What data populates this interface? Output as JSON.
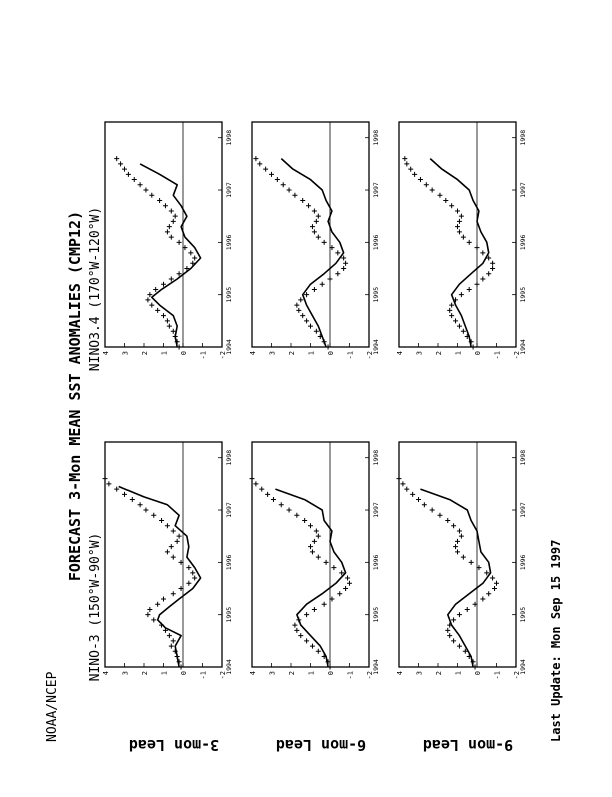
{
  "header": {
    "org": "NOAA/NCEP",
    "main_title": "FORECAST 3-Mon MEAN SST ANOMALIES (CMP12)",
    "footer": "Last Update: Mon Sep 15 1997"
  },
  "row_labels": [
    "3-mon Lead",
    "6-mon Lead",
    "9-mon Lead"
  ],
  "col_titles": [
    "NINO-3 (150°W-90°W)",
    "NINO3.4 (170°W-120°W)"
  ],
  "x_tick_labels": [
    "1994",
    "1995",
    "1996",
    "1997",
    "1998"
  ],
  "y_tick_labels": [
    "-2",
    "-1",
    "0",
    "1",
    "2",
    "3",
    "4"
  ],
  "chart_data": [
    {
      "type": "line",
      "region": "NINO-3",
      "lead": "3-mon Lead",
      "xlim": [
        1994.0,
        1998.3
      ],
      "ylim": [
        -2,
        4
      ],
      "series": [
        {
          "style": "line",
          "x": [
            1994.0,
            1994.2,
            1994.4,
            1994.6,
            1994.75,
            1994.9,
            1995.0,
            1995.15,
            1995.3,
            1995.5,
            1995.7,
            1995.9,
            1996.1,
            1996.3,
            1996.5,
            1996.7,
            1996.9,
            1997.1,
            1997.25,
            1997.45
          ],
          "y": [
            0.2,
            0.3,
            0.4,
            0.1,
            0.9,
            1.3,
            1.2,
            0.7,
            0.2,
            -0.5,
            -0.9,
            -0.6,
            -0.2,
            -0.3,
            -0.2,
            0.4,
            0.2,
            0.8,
            2.0,
            3.3
          ]
        },
        {
          "style": "cross",
          "x": [
            1994.0,
            1994.1,
            1994.2,
            1994.3,
            1994.4,
            1994.5,
            1994.6,
            1994.7,
            1994.8,
            1994.9,
            1995.0,
            1995.1,
            1995.2,
            1995.3,
            1995.4,
            1995.5,
            1995.6,
            1995.7,
            1995.8,
            1995.9,
            1996.0,
            1996.1,
            1996.2,
            1996.3,
            1996.4,
            1996.5,
            1996.6,
            1996.7,
            1996.8,
            1996.9,
            1997.0,
            1997.1,
            1997.2,
            1997.3,
            1997.4,
            1997.5,
            1997.6
          ],
          "y": [
            0.1,
            0.2,
            0.3,
            0.4,
            0.6,
            0.5,
            0.7,
            0.9,
            1.1,
            1.5,
            1.8,
            1.7,
            1.3,
            1.0,
            0.5,
            0.1,
            -0.3,
            -0.6,
            -0.5,
            -0.3,
            0.1,
            0.5,
            0.8,
            0.6,
            0.3,
            0.2,
            0.5,
            0.8,
            1.1,
            1.5,
            1.9,
            2.2,
            2.6,
            3.0,
            3.4,
            3.8,
            4.0
          ]
        }
      ]
    },
    {
      "type": "line",
      "region": "NINO3.4",
      "lead": "3-mon Lead",
      "xlim": [
        1994.0,
        1998.3
      ],
      "ylim": [
        -2,
        4
      ],
      "series": [
        {
          "style": "line",
          "x": [
            1994.0,
            1994.2,
            1994.4,
            1994.6,
            1994.8,
            1994.95,
            1995.1,
            1995.3,
            1995.5,
            1995.7,
            1995.9,
            1996.1,
            1996.3,
            1996.5,
            1996.7,
            1996.9,
            1997.1,
            1997.3,
            1997.5
          ],
          "y": [
            0.3,
            0.4,
            0.3,
            0.5,
            1.2,
            1.6,
            1.1,
            0.3,
            -0.4,
            -0.9,
            -0.6,
            -0.1,
            0.1,
            -0.2,
            0.1,
            0.5,
            0.3,
            1.2,
            2.2
          ]
        },
        {
          "style": "cross",
          "x": [
            1994.0,
            1994.1,
            1994.2,
            1994.3,
            1994.4,
            1994.5,
            1994.6,
            1994.7,
            1994.8,
            1994.9,
            1995.0,
            1995.1,
            1995.2,
            1995.3,
            1995.4,
            1995.5,
            1995.6,
            1995.7,
            1995.8,
            1995.9,
            1996.0,
            1996.1,
            1996.2,
            1996.3,
            1996.4,
            1996.5,
            1996.6,
            1996.7,
            1996.8,
            1996.9,
            1997.0,
            1997.1,
            1997.2,
            1997.3,
            1997.4,
            1997.5,
            1997.6
          ],
          "y": [
            0.2,
            0.3,
            0.4,
            0.5,
            0.7,
            0.8,
            1.0,
            1.3,
            1.6,
            1.8,
            1.7,
            1.4,
            1.0,
            0.6,
            0.2,
            -0.2,
            -0.5,
            -0.6,
            -0.4,
            -0.1,
            0.2,
            0.6,
            0.8,
            0.7,
            0.5,
            0.4,
            0.6,
            0.9,
            1.2,
            1.6,
            1.9,
            2.2,
            2.5,
            2.8,
            3.0,
            3.2,
            3.4
          ]
        }
      ]
    },
    {
      "type": "line",
      "region": "NINO-3",
      "lead": "6-mon Lead",
      "xlim": [
        1994.0,
        1998.3
      ],
      "ylim": [
        -2,
        4
      ],
      "series": [
        {
          "style": "line",
          "x": [
            1994.0,
            1994.2,
            1994.4,
            1994.6,
            1994.8,
            1995.0,
            1995.2,
            1995.4,
            1995.6,
            1995.8,
            1996.0,
            1996.2,
            1996.4,
            1996.6,
            1996.8,
            1997.0,
            1997.2,
            1997.4
          ],
          "y": [
            0.1,
            0.2,
            0.5,
            1.0,
            1.5,
            1.7,
            1.2,
            0.4,
            -0.3,
            -0.8,
            -0.6,
            -0.2,
            0.0,
            -0.1,
            0.3,
            0.4,
            1.3,
            2.8
          ]
        },
        {
          "style": "cross",
          "x": [
            1994.0,
            1994.1,
            1994.2,
            1994.3,
            1994.4,
            1994.5,
            1994.6,
            1994.7,
            1994.8,
            1994.9,
            1995.0,
            1995.1,
            1995.2,
            1995.3,
            1995.4,
            1995.5,
            1995.6,
            1995.7,
            1995.8,
            1995.9,
            1996.0,
            1996.1,
            1996.2,
            1996.3,
            1996.4,
            1996.5,
            1996.6,
            1996.7,
            1996.8,
            1996.9,
            1997.0,
            1997.1,
            1997.2,
            1997.3,
            1997.4,
            1997.5,
            1997.6
          ],
          "y": [
            0.0,
            0.1,
            0.3,
            0.6,
            0.9,
            1.2,
            1.5,
            1.7,
            1.8,
            1.6,
            1.2,
            0.8,
            0.3,
            -0.1,
            -0.5,
            -0.8,
            -1.0,
            -0.9,
            -0.6,
            -0.2,
            0.2,
            0.6,
            0.9,
            1.0,
            0.8,
            0.6,
            0.7,
            1.0,
            1.3,
            1.7,
            2.1,
            2.5,
            2.9,
            3.2,
            3.5,
            3.8,
            4.0
          ]
        }
      ]
    },
    {
      "type": "line",
      "region": "NINO3.4",
      "lead": "6-mon Lead",
      "xlim": [
        1994.0,
        1998.3
      ],
      "ylim": [
        -2,
        4
      ],
      "series": [
        {
          "style": "line",
          "x": [
            1994.0,
            1994.2,
            1994.4,
            1994.6,
            1994.8,
            1995.0,
            1995.2,
            1995.4,
            1995.6,
            1995.8,
            1996.0,
            1996.2,
            1996.4,
            1996.6,
            1996.8,
            1997.0,
            1997.2,
            1997.4,
            1997.6
          ],
          "y": [
            0.2,
            0.4,
            0.6,
            0.9,
            1.2,
            1.4,
            1.0,
            0.3,
            -0.3,
            -0.7,
            -0.5,
            -0.1,
            0.1,
            -0.1,
            0.2,
            0.4,
            1.0,
            1.9,
            2.5
          ]
        },
        {
          "style": "cross",
          "x": [
            1994.0,
            1994.1,
            1994.2,
            1994.3,
            1994.4,
            1994.5,
            1994.6,
            1994.7,
            1994.8,
            1994.9,
            1995.0,
            1995.1,
            1995.2,
            1995.3,
            1995.4,
            1995.5,
            1995.6,
            1995.7,
            1995.8,
            1995.9,
            1996.0,
            1996.1,
            1996.2,
            1996.3,
            1996.4,
            1996.5,
            1996.6,
            1996.7,
            1996.8,
            1996.9,
            1997.0,
            1997.1,
            1997.2,
            1997.3,
            1997.4,
            1997.5,
            1997.6
          ],
          "y": [
            0.1,
            0.3,
            0.5,
            0.7,
            1.0,
            1.2,
            1.4,
            1.6,
            1.7,
            1.5,
            1.2,
            0.8,
            0.4,
            0.0,
            -0.4,
            -0.7,
            -0.8,
            -0.7,
            -0.4,
            -0.1,
            0.3,
            0.6,
            0.8,
            0.9,
            0.7,
            0.6,
            0.8,
            1.1,
            1.4,
            1.8,
            2.1,
            2.4,
            2.7,
            3.0,
            3.3,
            3.6,
            3.8
          ]
        }
      ]
    },
    {
      "type": "line",
      "region": "NINO-3",
      "lead": "9-mon Lead",
      "xlim": [
        1994.0,
        1998.3
      ],
      "ylim": [
        -2,
        4
      ],
      "series": [
        {
          "style": "line",
          "x": [
            1994.0,
            1994.2,
            1994.4,
            1994.6,
            1994.8,
            1995.0,
            1995.2,
            1995.4,
            1995.6,
            1995.8,
            1996.0,
            1996.2,
            1996.4,
            1996.6,
            1996.8,
            1997.0,
            1997.2,
            1997.4
          ],
          "y": [
            0.2,
            0.3,
            0.6,
            0.9,
            1.3,
            1.5,
            1.1,
            0.4,
            -0.3,
            -0.7,
            -0.6,
            -0.2,
            -0.1,
            0.0,
            0.3,
            0.5,
            1.4,
            2.9
          ]
        },
        {
          "style": "cross",
          "x": [
            1994.0,
            1994.1,
            1994.2,
            1994.3,
            1994.4,
            1994.5,
            1994.6,
            1994.7,
            1994.8,
            1994.9,
            1995.0,
            1995.1,
            1995.2,
            1995.3,
            1995.4,
            1995.5,
            1995.6,
            1995.7,
            1995.8,
            1995.9,
            1996.0,
            1996.1,
            1996.2,
            1996.3,
            1996.4,
            1996.5,
            1996.6,
            1996.7,
            1996.8,
            1996.9,
            1997.0,
            1997.1,
            1997.2,
            1997.3,
            1997.4,
            1997.5,
            1997.6
          ],
          "y": [
            0.1,
            0.2,
            0.4,
            0.6,
            0.9,
            1.2,
            1.4,
            1.5,
            1.4,
            1.2,
            0.9,
            0.5,
            0.1,
            -0.3,
            -0.6,
            -0.9,
            -1.0,
            -0.8,
            -0.5,
            -0.1,
            0.3,
            0.7,
            1.0,
            1.1,
            1.0,
            0.8,
            0.9,
            1.2,
            1.5,
            1.9,
            2.3,
            2.7,
            3.0,
            3.3,
            3.6,
            3.8,
            4.0
          ]
        }
      ]
    },
    {
      "type": "line",
      "region": "NINO3.4",
      "lead": "9-mon Lead",
      "xlim": [
        1994.0,
        1998.3
      ],
      "ylim": [
        -2,
        4
      ],
      "series": [
        {
          "style": "line",
          "x": [
            1994.0,
            1994.2,
            1994.4,
            1994.6,
            1994.8,
            1995.0,
            1995.2,
            1995.4,
            1995.6,
            1995.8,
            1996.0,
            1996.2,
            1996.4,
            1996.6,
            1996.8,
            1997.0,
            1997.2,
            1997.4,
            1997.6
          ],
          "y": [
            0.3,
            0.4,
            0.6,
            0.8,
            1.1,
            1.3,
            0.9,
            0.3,
            -0.3,
            -0.6,
            -0.5,
            -0.2,
            0.0,
            -0.1,
            0.2,
            0.4,
            1.0,
            1.8,
            2.4
          ]
        },
        {
          "style": "cross",
          "x": [
            1994.0,
            1994.1,
            1994.2,
            1994.3,
            1994.4,
            1994.5,
            1994.6,
            1994.7,
            1994.8,
            1994.9,
            1995.0,
            1995.1,
            1995.2,
            1995.3,
            1995.4,
            1995.5,
            1995.6,
            1995.7,
            1995.8,
            1995.9,
            1996.0,
            1996.1,
            1996.2,
            1996.3,
            1996.4,
            1996.5,
            1996.6,
            1996.7,
            1996.8,
            1996.9,
            1997.0,
            1997.1,
            1997.2,
            1997.3,
            1997.4,
            1997.5,
            1997.6
          ],
          "y": [
            0.2,
            0.3,
            0.5,
            0.7,
            0.9,
            1.1,
            1.3,
            1.4,
            1.3,
            1.1,
            0.8,
            0.4,
            0.0,
            -0.3,
            -0.6,
            -0.8,
            -0.8,
            -0.6,
            -0.3,
            0.0,
            0.4,
            0.7,
            0.9,
            1.0,
            0.9,
            0.8,
            1.0,
            1.3,
            1.6,
            1.9,
            2.3,
            2.6,
            2.9,
            3.2,
            3.4,
            3.6,
            3.7
          ]
        }
      ]
    }
  ]
}
